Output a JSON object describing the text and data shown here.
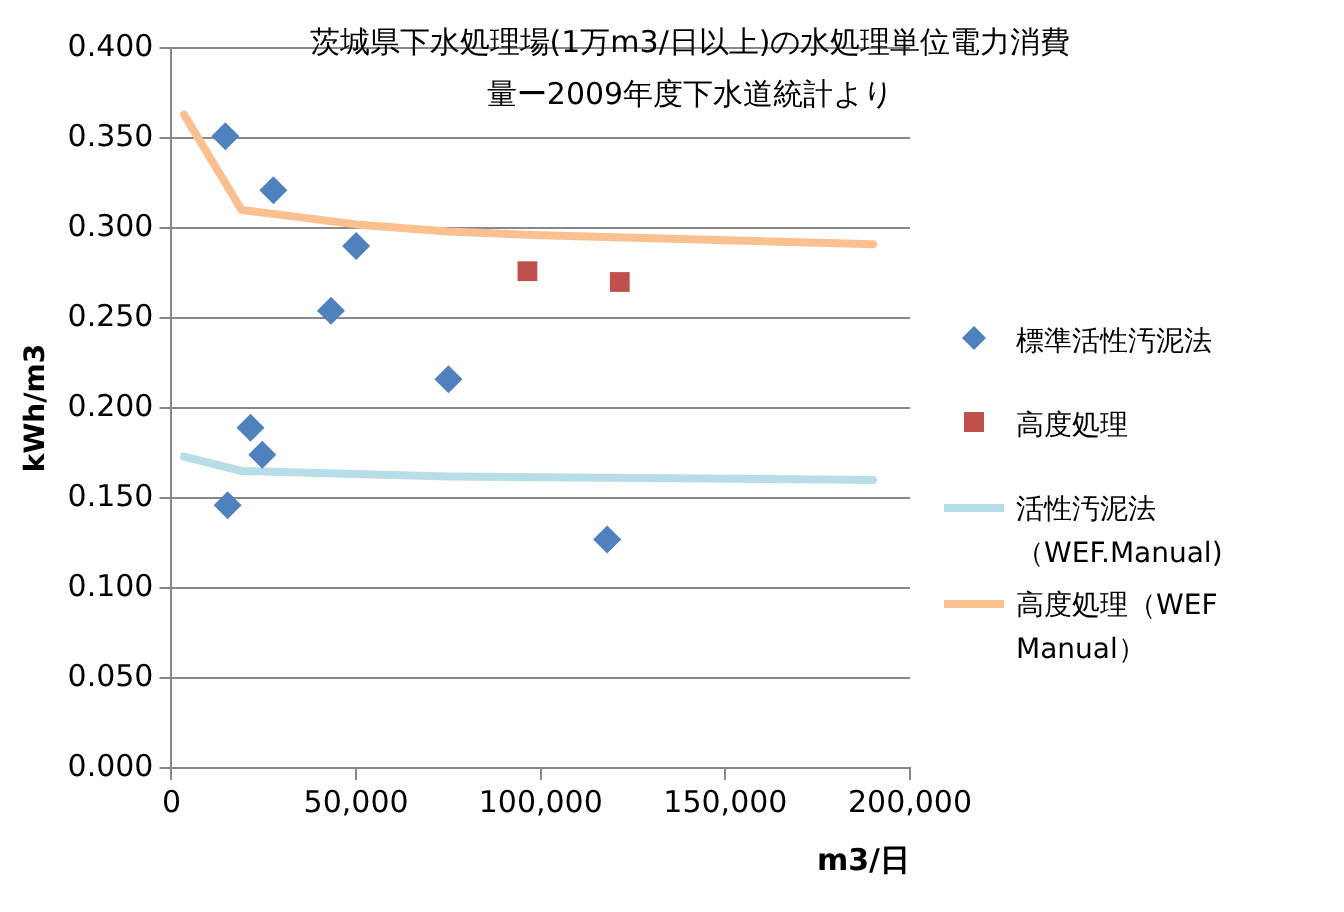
{
  "chart_data": {
    "type": "scatter",
    "title": "茨城県下水処理場(1万m3/日以上)の水処理単位電力消費量ー2009年度下水道統計より",
    "xlabel": "m3/日",
    "ylabel": "kWh/m3",
    "xlim": [
      0,
      200000
    ],
    "xticks": [
      0,
      {
        "value": 50000,
        "label": "50,000"
      },
      {
        "value": 100000,
        "label": "100,000"
      },
      {
        "value": 150000,
        "label": "150,000"
      },
      {
        "value": 200000,
        "label": "200,000"
      }
    ],
    "ylim": [
      0,
      0.4
    ],
    "yticks": [
      {
        "value": 0,
        "label": "0.000"
      },
      {
        "value": 0.05,
        "label": "0.050"
      },
      {
        "value": 0.1,
        "label": "0.100"
      },
      {
        "value": 0.15,
        "label": "0.150"
      },
      {
        "value": 0.2,
        "label": "0.200"
      },
      {
        "value": 0.25,
        "label": "0.250"
      },
      {
        "value": 0.3,
        "label": "0.300"
      },
      {
        "value": 0.35,
        "label": "0.350"
      },
      {
        "value": 0.4,
        "label": "0.400"
      }
    ],
    "grid": "y",
    "legend": "right",
    "series": [
      {
        "name": "標準活性汚泥法",
        "type": "scatter",
        "marker": "diamond",
        "color": "#4f81bd",
        "x": [
          14600,
          27600,
          50000,
          43200,
          75000,
          21400,
          24600,
          15200,
          118000
        ],
        "values": [
          0.351,
          0.321,
          0.29,
          0.254,
          0.216,
          0.189,
          0.174,
          0.146,
          0.127
        ]
      },
      {
        "name": "高度処理",
        "type": "scatter",
        "marker": "square",
        "color": "#c0504d",
        "x": [
          96400,
          121400
        ],
        "values": [
          0.276,
          0.27
        ]
      },
      {
        "name": "活性汚泥法（WEF.Manual)",
        "type": "line",
        "marker": "none",
        "color": "#b7dde8",
        "x": [
          3400,
          19000,
          75000,
          190000
        ],
        "values": [
          0.173,
          0.165,
          0.162,
          0.16
        ]
      },
      {
        "name": "高度処理（WEF Manual）",
        "type": "line",
        "marker": "none",
        "color": "#fac090",
        "x": [
          3400,
          19000,
          50000,
          75000,
          100000,
          190000
        ],
        "values": [
          0.363,
          0.31,
          0.302,
          0.298,
          0.296,
          0.291
        ]
      }
    ]
  }
}
